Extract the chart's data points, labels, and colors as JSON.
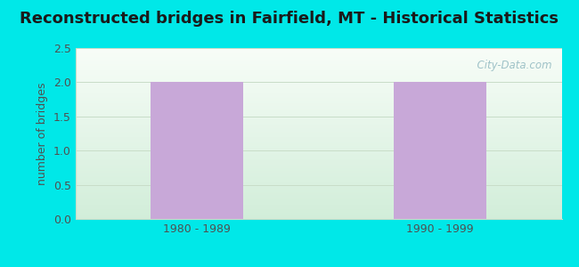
{
  "title": "Reconstructed bridges in Fairfield, MT - Historical Statistics",
  "categories": [
    "1980 - 1989",
    "1990 - 1999"
  ],
  "values": [
    2,
    2
  ],
  "bar_color": "#c8a8d8",
  "bar_width": 0.38,
  "ylabel": "number of bridges",
  "ylim": [
    0,
    2.5
  ],
  "yticks": [
    0,
    0.5,
    1,
    1.5,
    2,
    2.5
  ],
  "background_outer": "#00e8e8",
  "background_top_color": "#f0f8f0",
  "background_bottom_color": "#d0edd8",
  "grid_color": "#c8ddc8",
  "title_color": "#1a1a1a",
  "ylabel_color": "#505050",
  "tick_color": "#505050",
  "xlabel_color": "#505050",
  "watermark": "  City-Data.com",
  "watermark_color": "#90b8c0",
  "title_fontsize": 13,
  "ylabel_fontsize": 9,
  "tick_fontsize": 9
}
